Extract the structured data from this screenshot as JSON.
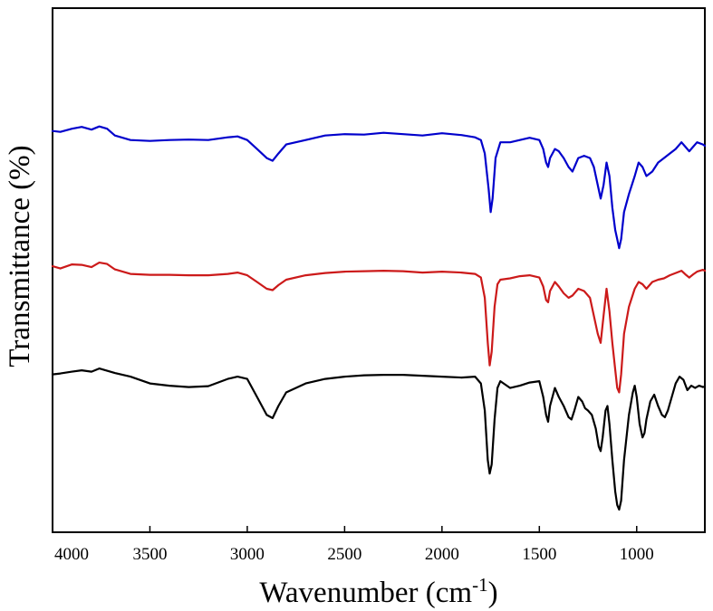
{
  "chart_data": {
    "type": "line",
    "title": "",
    "xlabel": "Wavenumber (cm",
    "xlabel_sup": "-1",
    "xlabel_close": ")",
    "ylabel": "Transmittance (%)",
    "xlim": [
      4000,
      650
    ],
    "x_reversed": true,
    "ylim": [
      0,
      100
    ],
    "x_ticks": [
      4000,
      3500,
      3000,
      2500,
      2000,
      1500,
      1000
    ],
    "x_tick_labels": [
      "4000",
      "3500",
      "3000",
      "2500",
      "2000",
      "1500",
      "1000"
    ],
    "y_ticks_shown": false,
    "grid": false,
    "legend": "none",
    "series": [
      {
        "name": "blue",
        "color": "#0000cc",
        "points": [
          [
            4000,
            85.0
          ],
          [
            3960,
            84.8
          ],
          [
            3900,
            85.5
          ],
          [
            3850,
            85.9
          ],
          [
            3800,
            85.3
          ],
          [
            3760,
            86.0
          ],
          [
            3720,
            85.5
          ],
          [
            3680,
            84.0
          ],
          [
            3600,
            83.0
          ],
          [
            3500,
            82.8
          ],
          [
            3400,
            83.0
          ],
          [
            3300,
            83.1
          ],
          [
            3200,
            83.0
          ],
          [
            3100,
            83.6
          ],
          [
            3050,
            83.8
          ],
          [
            3000,
            83.0
          ],
          [
            2950,
            81.0
          ],
          [
            2900,
            79.0
          ],
          [
            2870,
            78.4
          ],
          [
            2840,
            80.0
          ],
          [
            2800,
            82.0
          ],
          [
            2700,
            83.0
          ],
          [
            2600,
            84.0
          ],
          [
            2500,
            84.3
          ],
          [
            2400,
            84.2
          ],
          [
            2300,
            84.6
          ],
          [
            2200,
            84.3
          ],
          [
            2100,
            84.0
          ],
          [
            2000,
            84.5
          ],
          [
            1900,
            84.1
          ],
          [
            1830,
            83.6
          ],
          [
            1800,
            83.0
          ],
          [
            1780,
            80.0
          ],
          [
            1760,
            72.0
          ],
          [
            1750,
            67.0
          ],
          [
            1740,
            70.0
          ],
          [
            1725,
            79.0
          ],
          [
            1700,
            82.5
          ],
          [
            1650,
            82.5
          ],
          [
            1600,
            83.0
          ],
          [
            1550,
            83.5
          ],
          [
            1500,
            83.0
          ],
          [
            1480,
            81.0
          ],
          [
            1465,
            78.0
          ],
          [
            1455,
            77.0
          ],
          [
            1445,
            79.0
          ],
          [
            1420,
            81.0
          ],
          [
            1400,
            80.5
          ],
          [
            1375,
            79.0
          ],
          [
            1350,
            77.0
          ],
          [
            1330,
            76.0
          ],
          [
            1300,
            79.0
          ],
          [
            1270,
            79.5
          ],
          [
            1240,
            79.0
          ],
          [
            1220,
            77.0
          ],
          [
            1200,
            73.0
          ],
          [
            1185,
            70.0
          ],
          [
            1170,
            73.0
          ],
          [
            1155,
            78.0
          ],
          [
            1140,
            75.0
          ],
          [
            1125,
            68.0
          ],
          [
            1110,
            63.0
          ],
          [
            1100,
            61.0
          ],
          [
            1090,
            59.0
          ],
          [
            1080,
            61.0
          ],
          [
            1065,
            67.0
          ],
          [
            1040,
            71.0
          ],
          [
            1010,
            75.0
          ],
          [
            990,
            78.0
          ],
          [
            970,
            77.0
          ],
          [
            950,
            75.0
          ],
          [
            920,
            76.0
          ],
          [
            890,
            78.0
          ],
          [
            860,
            79.0
          ],
          [
            830,
            80.0
          ],
          [
            800,
            81.0
          ],
          [
            770,
            82.5
          ],
          [
            750,
            81.5
          ],
          [
            730,
            80.5
          ],
          [
            710,
            81.5
          ],
          [
            690,
            82.5
          ],
          [
            660,
            82.0
          ],
          [
            650,
            81.7
          ]
        ]
      },
      {
        "name": "red",
        "color": "#cc1a1a",
        "points": [
          [
            4000,
            55.0
          ],
          [
            3960,
            54.5
          ],
          [
            3900,
            55.4
          ],
          [
            3850,
            55.3
          ],
          [
            3800,
            54.8
          ],
          [
            3760,
            55.8
          ],
          [
            3720,
            55.5
          ],
          [
            3680,
            54.3
          ],
          [
            3600,
            53.3
          ],
          [
            3500,
            53.1
          ],
          [
            3400,
            53.1
          ],
          [
            3300,
            53.0
          ],
          [
            3200,
            53.0
          ],
          [
            3100,
            53.3
          ],
          [
            3050,
            53.6
          ],
          [
            3000,
            53.0
          ],
          [
            2950,
            51.5
          ],
          [
            2900,
            50.0
          ],
          [
            2870,
            49.7
          ],
          [
            2840,
            50.8
          ],
          [
            2800,
            52.0
          ],
          [
            2700,
            53.0
          ],
          [
            2600,
            53.5
          ],
          [
            2500,
            53.8
          ],
          [
            2400,
            53.9
          ],
          [
            2300,
            54.0
          ],
          [
            2200,
            53.9
          ],
          [
            2100,
            53.6
          ],
          [
            2000,
            53.8
          ],
          [
            1900,
            53.6
          ],
          [
            1830,
            53.3
          ],
          [
            1800,
            52.5
          ],
          [
            1780,
            48.0
          ],
          [
            1765,
            38.0
          ],
          [
            1755,
            33.0
          ],
          [
            1745,
            36.0
          ],
          [
            1730,
            46.0
          ],
          [
            1715,
            51.0
          ],
          [
            1700,
            52.0
          ],
          [
            1650,
            52.3
          ],
          [
            1600,
            52.8
          ],
          [
            1550,
            53.0
          ],
          [
            1500,
            52.5
          ],
          [
            1480,
            50.5
          ],
          [
            1465,
            47.5
          ],
          [
            1455,
            47.0
          ],
          [
            1445,
            49.5
          ],
          [
            1420,
            51.5
          ],
          [
            1400,
            50.5
          ],
          [
            1375,
            49.0
          ],
          [
            1350,
            48.0
          ],
          [
            1330,
            48.5
          ],
          [
            1300,
            50.0
          ],
          [
            1270,
            49.5
          ],
          [
            1240,
            48.0
          ],
          [
            1220,
            44.0
          ],
          [
            1200,
            40.0
          ],
          [
            1185,
            38.0
          ],
          [
            1170,
            44.0
          ],
          [
            1155,
            50.0
          ],
          [
            1140,
            45.0
          ],
          [
            1125,
            38.0
          ],
          [
            1110,
            32.0
          ],
          [
            1100,
            28.0
          ],
          [
            1090,
            27.0
          ],
          [
            1080,
            31.0
          ],
          [
            1065,
            40.0
          ],
          [
            1040,
            46.0
          ],
          [
            1010,
            50.0
          ],
          [
            990,
            51.5
          ],
          [
            970,
            51.0
          ],
          [
            950,
            50.0
          ],
          [
            920,
            51.5
          ],
          [
            890,
            52.0
          ],
          [
            860,
            52.3
          ],
          [
            830,
            53.0
          ],
          [
            800,
            53.5
          ],
          [
            770,
            54.0
          ],
          [
            750,
            53.2
          ],
          [
            730,
            52.5
          ],
          [
            710,
            53.2
          ],
          [
            690,
            53.8
          ],
          [
            660,
            54.2
          ],
          [
            650,
            54.0
          ]
        ]
      },
      {
        "name": "black",
        "color": "#000000",
        "points": [
          [
            4000,
            31.0
          ],
          [
            3960,
            31.2
          ],
          [
            3900,
            31.6
          ],
          [
            3850,
            31.9
          ],
          [
            3800,
            31.6
          ],
          [
            3760,
            32.3
          ],
          [
            3720,
            31.8
          ],
          [
            3680,
            31.3
          ],
          [
            3600,
            30.5
          ],
          [
            3500,
            29.0
          ],
          [
            3400,
            28.5
          ],
          [
            3300,
            28.2
          ],
          [
            3200,
            28.4
          ],
          [
            3100,
            30.0
          ],
          [
            3050,
            30.5
          ],
          [
            3000,
            30.0
          ],
          [
            2950,
            26.0
          ],
          [
            2900,
            22.0
          ],
          [
            2870,
            21.3
          ],
          [
            2840,
            24.0
          ],
          [
            2800,
            27.0
          ],
          [
            2700,
            29.0
          ],
          [
            2600,
            30.0
          ],
          [
            2500,
            30.5
          ],
          [
            2400,
            30.8
          ],
          [
            2300,
            30.9
          ],
          [
            2200,
            30.9
          ],
          [
            2100,
            30.7
          ],
          [
            2000,
            30.5
          ],
          [
            1900,
            30.3
          ],
          [
            1830,
            30.5
          ],
          [
            1800,
            29.0
          ],
          [
            1780,
            23.0
          ],
          [
            1765,
            12.0
          ],
          [
            1755,
            9.0
          ],
          [
            1745,
            11.0
          ],
          [
            1730,
            21.0
          ],
          [
            1715,
            28.0
          ],
          [
            1700,
            29.5
          ],
          [
            1650,
            28.0
          ],
          [
            1600,
            28.5
          ],
          [
            1550,
            29.2
          ],
          [
            1500,
            29.5
          ],
          [
            1480,
            26.0
          ],
          [
            1465,
            22.0
          ],
          [
            1455,
            20.5
          ],
          [
            1445,
            24.0
          ],
          [
            1420,
            28.0
          ],
          [
            1400,
            26.0
          ],
          [
            1375,
            24.0
          ],
          [
            1350,
            21.5
          ],
          [
            1335,
            21.0
          ],
          [
            1320,
            23.0
          ],
          [
            1300,
            26.0
          ],
          [
            1280,
            25.0
          ],
          [
            1265,
            23.5
          ],
          [
            1250,
            23.0
          ],
          [
            1230,
            22.0
          ],
          [
            1210,
            19.0
          ],
          [
            1195,
            15.0
          ],
          [
            1185,
            14.0
          ],
          [
            1175,
            17.0
          ],
          [
            1160,
            23.0
          ],
          [
            1150,
            24.0
          ],
          [
            1140,
            20.0
          ],
          [
            1125,
            12.0
          ],
          [
            1110,
            5.0
          ],
          [
            1100,
            2.0
          ],
          [
            1090,
            1.0
          ],
          [
            1080,
            3.0
          ],
          [
            1065,
            12.0
          ],
          [
            1040,
            22.0
          ],
          [
            1020,
            27.0
          ],
          [
            1010,
            28.5
          ],
          [
            1000,
            26.0
          ],
          [
            985,
            20.0
          ],
          [
            970,
            17.0
          ],
          [
            960,
            18.0
          ],
          [
            950,
            21.0
          ],
          [
            930,
            25.0
          ],
          [
            910,
            26.5
          ],
          [
            890,
            24.0
          ],
          [
            870,
            22.0
          ],
          [
            855,
            21.5
          ],
          [
            840,
            23.0
          ],
          [
            820,
            26.0
          ],
          [
            800,
            29.0
          ],
          [
            780,
            30.5
          ],
          [
            760,
            29.8
          ],
          [
            740,
            27.5
          ],
          [
            720,
            28.5
          ],
          [
            700,
            28.0
          ],
          [
            680,
            28.5
          ],
          [
            660,
            28.2
          ],
          [
            650,
            28.3
          ]
        ]
      }
    ]
  }
}
